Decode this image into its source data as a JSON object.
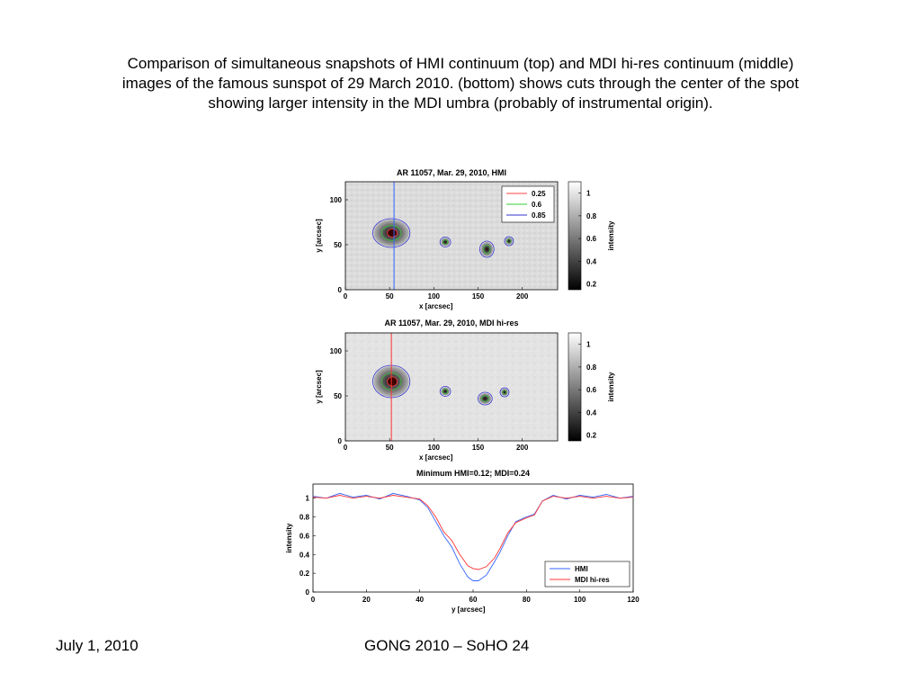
{
  "caption": [
    "Comparison of simultaneous snapshots of HMI continuum (top) and MDI hi-res continuum (middle)",
    "images of the famous sunspot of 29 March 2010.  (bottom) shows cuts through the center of the spot",
    "showing larger intensity in the MDI umbra (probably of instrumental origin)."
  ],
  "footer": {
    "date": "July 1, 2010",
    "conference": "GONG 2010 – SoHO 24"
  },
  "colors": {
    "contour_low": "#ff4444",
    "contour_mid": "#33cc33",
    "contour_high": "#3333cc",
    "hmi_line": "#3366ff",
    "mdi_line": "#ff3333"
  },
  "chart_data": [
    {
      "type": "heatmap",
      "title": "AR 11057, Mar. 29, 2010, HMI",
      "xlabel": "x [arcsec]",
      "ylabel": "y [arcsec]",
      "xlim": [
        0,
        240
      ],
      "ylim": [
        0,
        120
      ],
      "xticks": [
        "0",
        "50",
        "100",
        "150",
        "200"
      ],
      "yticks": [
        "0",
        "50",
        "100"
      ],
      "cut_x": 55,
      "cut_color": "#3366ff",
      "legend": [
        {
          "label": "0.25",
          "color": "#ff4444"
        },
        {
          "label": "0.6",
          "color": "#33cc33"
        },
        {
          "label": "0.85",
          "color": "#3333cc"
        }
      ],
      "legend_position": "top-right",
      "colorbar": {
        "label": "intensity",
        "ticks": [
          "1",
          "0.8",
          "0.6",
          "0.4",
          "0.2"
        ],
        "range": [
          0.15,
          1.1
        ]
      },
      "spots": [
        {
          "x": 52,
          "y": 63,
          "rx": 20,
          "ry": 15
        },
        {
          "x": 113,
          "y": 53,
          "rx": 5,
          "ry": 4.5
        },
        {
          "x": 160,
          "y": 45,
          "rx": 7,
          "ry": 8
        },
        {
          "x": 185,
          "y": 54,
          "rx": 4,
          "ry": 4
        }
      ]
    },
    {
      "type": "heatmap",
      "title": "AR 11057, Mar. 29, 2010, MDI hi-res",
      "xlabel": "x [arcsec]",
      "ylabel": "y [arcsec]",
      "xlim": [
        0,
        240
      ],
      "ylim": [
        0,
        120
      ],
      "xticks": [
        "0",
        "50",
        "100",
        "150",
        "200"
      ],
      "yticks": [
        "0",
        "50",
        "100"
      ],
      "cut_x": 52,
      "cut_color": "#ff3333",
      "colorbar": {
        "label": "intensity",
        "ticks": [
          "1",
          "0.8",
          "0.6",
          "0.4",
          "0.2"
        ],
        "range": [
          0.15,
          1.1
        ]
      },
      "spots": [
        {
          "x": 52,
          "y": 66,
          "rx": 20,
          "ry": 17
        },
        {
          "x": 113,
          "y": 55,
          "rx": 5,
          "ry": 4.5
        },
        {
          "x": 158,
          "y": 47,
          "rx": 7,
          "ry": 6
        },
        {
          "x": 180,
          "y": 54,
          "rx": 4,
          "ry": 4
        }
      ]
    },
    {
      "type": "line",
      "title": "Minimum HMI=0.12; MDI=0.24",
      "xlabel": "y [arcsec]",
      "ylabel": "intensity",
      "xlim": [
        0,
        120
      ],
      "ylim": [
        0,
        1.15
      ],
      "xticks": [
        "0",
        "20",
        "40",
        "60",
        "80",
        "100",
        "120"
      ],
      "yticks": [
        "0",
        "0.2",
        "0.4",
        "0.6",
        "0.8",
        "1"
      ],
      "legend_position": "bottom-right",
      "x": [
        0,
        5,
        10,
        15,
        20,
        25,
        30,
        35,
        40,
        43,
        46,
        49,
        52,
        55,
        58,
        60,
        62,
        65,
        68,
        70,
        73,
        76,
        80,
        83,
        86,
        90,
        95,
        100,
        105,
        110,
        115,
        120
      ],
      "series": [
        {
          "name": "HMI",
          "color": "#3366ff",
          "values": [
            1.02,
            1.0,
            1.05,
            1.01,
            1.03,
            0.99,
            1.05,
            1.02,
            0.98,
            0.9,
            0.75,
            0.6,
            0.48,
            0.3,
            0.16,
            0.12,
            0.12,
            0.18,
            0.32,
            0.42,
            0.6,
            0.75,
            0.8,
            0.83,
            0.97,
            1.03,
            0.99,
            1.03,
            1.01,
            1.04,
            1.0,
            1.02
          ]
        },
        {
          "name": "MDI hi-res",
          "color": "#ff3333",
          "values": [
            1.01,
            1.0,
            1.03,
            1.0,
            1.02,
            1.0,
            1.03,
            1.01,
            0.99,
            0.92,
            0.8,
            0.64,
            0.55,
            0.4,
            0.28,
            0.25,
            0.24,
            0.27,
            0.36,
            0.46,
            0.63,
            0.74,
            0.79,
            0.82,
            0.97,
            1.02,
            1.0,
            1.02,
            1.0,
            1.02,
            1.0,
            1.01
          ]
        }
      ]
    }
  ]
}
